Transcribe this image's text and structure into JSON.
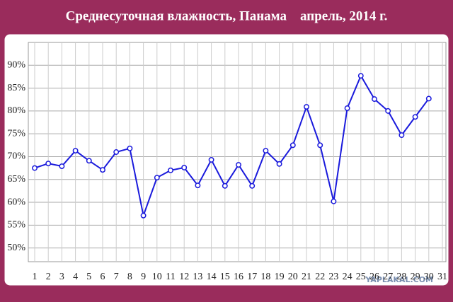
{
  "chart_data": {
    "type": "line",
    "title": "Среднесуточная влажность, Панама    апрель, 2014 г.",
    "watermark": "YAPLAKAL.COM",
    "categories": [
      "1",
      "2",
      "3",
      "4",
      "5",
      "6",
      "7",
      "8",
      "9",
      "10",
      "11",
      "12",
      "13",
      "14",
      "15",
      "16",
      "17",
      "18",
      "19",
      "20",
      "21",
      "22",
      "23",
      "24",
      "25",
      "26",
      "27",
      "28",
      "29",
      "30",
      "31"
    ],
    "series": [
      {
        "color": "#1a1adc",
        "values": [
          67.5,
          68.5,
          67.9,
          71.3,
          69.1,
          67.1,
          71.0,
          71.8,
          57.1,
          65.4,
          67.0,
          67.6,
          63.7,
          69.3,
          63.6,
          68.2,
          63.6,
          71.3,
          68.4,
          72.5,
          80.9,
          72.5,
          60.2,
          80.6,
          87.7,
          82.6,
          80.0,
          74.7,
          78.7,
          82.7,
          null
        ]
      }
    ],
    "ylim": [
      47,
      95
    ],
    "yticks": [
      {
        "value": 50,
        "label": "50%"
      },
      {
        "value": 55,
        "label": "55%"
      },
      {
        "value": 60,
        "label": "60%"
      },
      {
        "value": 65,
        "label": "65%"
      },
      {
        "value": 70,
        "label": "70%"
      },
      {
        "value": 75,
        "label": "75%"
      },
      {
        "value": 80,
        "label": "80%"
      },
      {
        "value": 85,
        "label": "85%"
      },
      {
        "value": 90,
        "label": "90%"
      }
    ],
    "grid": true
  }
}
